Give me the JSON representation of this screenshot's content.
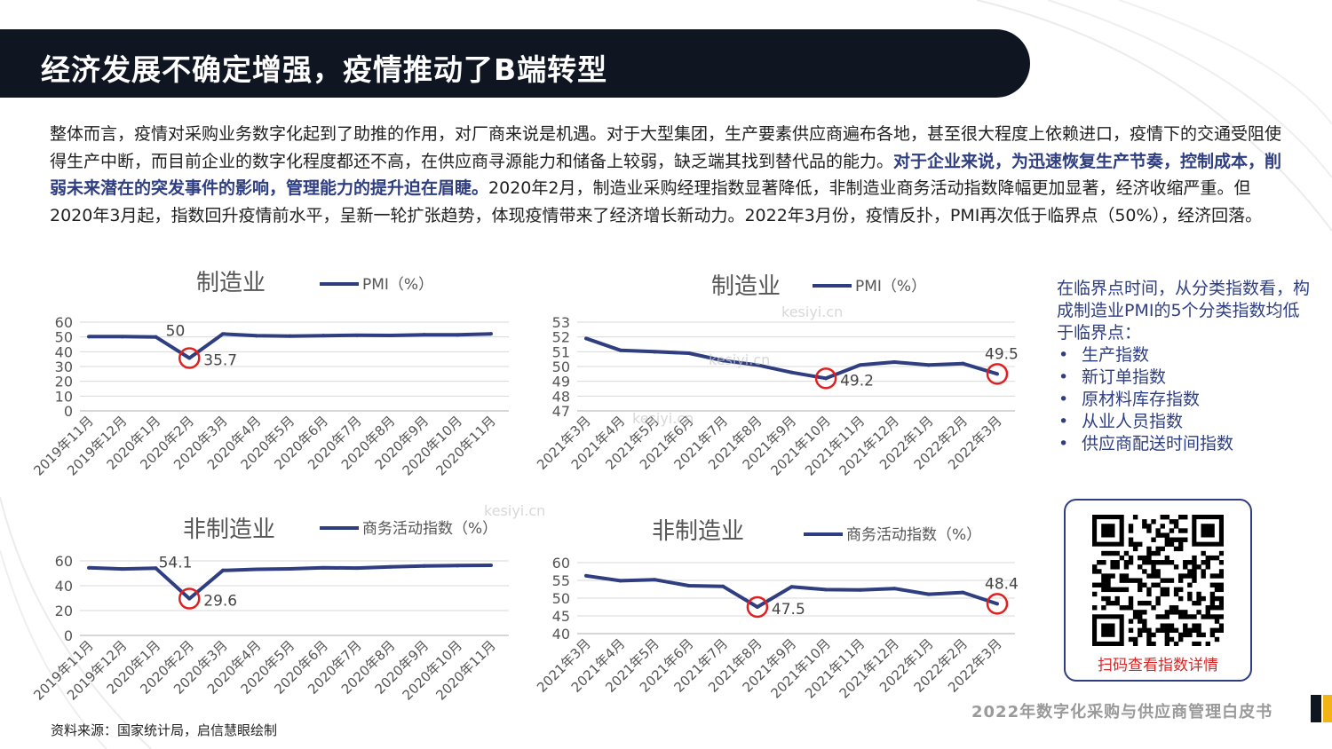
{
  "header": {
    "title": "经济发展不确定增强，疫情推动了B端转型"
  },
  "body": {
    "text_before": "整体而言，疫情对采购业务数字化起到了助推的作用，对厂商来说是机遇。对于大型集团，生产要素供应商遍布各地，甚至很大程度上依赖进口，疫情下的交通受阻使得生产中断，而目前企业的数字化程度都还不高，在供应商寻源能力和储备上较弱，缺乏端其找到替代品的能力。",
    "highlight": "对于企业来说，为迅速恢复生产节奏，控制成本，削弱未来潜在的突发事件的影响，管理能力的提升迫在眉睫。",
    "text_after": "2020年2月，制造业采购经理指数显著降低，非制造业商务活动指数降幅更加显著，经济收缩严重。但2020年3月起，指数回升疫情前水平，呈新一轮扩张趋势，体现疫情带来了经济增长新动力。2022年3月份，疫情反扑，PMI再次低于临界点（50%），经济回落。"
  },
  "chart_data": [
    {
      "type": "line",
      "title": "制造业",
      "legend": "PMI（%）",
      "categories": [
        "2019年11月",
        "2019年12月",
        "2020年1月",
        "2020年2月",
        "2020年3月",
        "2020年4月",
        "2020年5月",
        "2020年6月",
        "2020年7月",
        "2020年8月",
        "2020年9月",
        "2020年10月",
        "2020年11月"
      ],
      "values": [
        50.2,
        50.2,
        50.0,
        35.7,
        52.0,
        50.8,
        50.6,
        50.9,
        51.1,
        51.0,
        51.5,
        51.4,
        52.1
      ],
      "ylim": [
        0,
        60
      ],
      "yticks": [
        0,
        10,
        20,
        30,
        40,
        50,
        60
      ],
      "labels": [
        {
          "index": 2,
          "text": "50"
        },
        {
          "index": 3,
          "text": "35.7"
        }
      ],
      "circled": [
        3
      ],
      "color": "#2f3e80"
    },
    {
      "type": "line",
      "title": "制造业",
      "legend": "PMI（%）",
      "categories": [
        "2021年3月",
        "2021年4月",
        "2021年5月",
        "2021年6月",
        "2021年7月",
        "2021年8月",
        "2021年9月",
        "2021年10月",
        "2021年11月",
        "2021年12月",
        "2022年1月",
        "2022年2月",
        "2022年3月"
      ],
      "values": [
        51.9,
        51.1,
        51.0,
        50.9,
        50.4,
        50.1,
        49.6,
        49.2,
        50.1,
        50.3,
        50.1,
        50.2,
        49.5
      ],
      "ylim": [
        47,
        53
      ],
      "yticks": [
        47,
        48,
        49,
        50,
        51,
        52,
        53
      ],
      "labels": [
        {
          "index": 7,
          "text": "49.2"
        },
        {
          "index": 12,
          "text": "49.5"
        }
      ],
      "circled": [
        7,
        12
      ],
      "color": "#2f3e80"
    },
    {
      "type": "line",
      "title": "非制造业",
      "legend": "商务活动指数（%）",
      "categories": [
        "2019年11月",
        "2019年12月",
        "2020年1月",
        "2020年2月",
        "2020年3月",
        "2020年4月",
        "2020年5月",
        "2020年6月",
        "2020年7月",
        "2020年8月",
        "2020年9月",
        "2020年10月",
        "2020年11月"
      ],
      "values": [
        54.4,
        53.5,
        54.1,
        29.6,
        52.3,
        53.2,
        53.6,
        54.4,
        54.2,
        55.2,
        55.9,
        56.2,
        56.4
      ],
      "ylim": [
        0,
        60
      ],
      "yticks": [
        0,
        20,
        40,
        60
      ],
      "labels": [
        {
          "index": 2,
          "text": "54.1"
        },
        {
          "index": 3,
          "text": "29.6"
        }
      ],
      "circled": [
        3
      ],
      "color": "#2f3e80"
    },
    {
      "type": "line",
      "title": "非制造业",
      "legend": "商务活动指数（%）",
      "categories": [
        "2021年3月",
        "2021年4月",
        "2021年5月",
        "2021年6月",
        "2021年7月",
        "2021年8月",
        "2021年9月",
        "2021年10月",
        "2021年11月",
        "2021年12月",
        "2022年1月",
        "2022年2月",
        "2022年3月"
      ],
      "values": [
        56.3,
        54.9,
        55.2,
        53.5,
        53.3,
        47.5,
        53.2,
        52.4,
        52.3,
        52.7,
        51.1,
        51.6,
        48.4
      ],
      "ylim": [
        40,
        60
      ],
      "yticks": [
        40,
        45,
        50,
        55,
        60
      ],
      "labels": [
        {
          "index": 5,
          "text": "47.5"
        },
        {
          "index": 12,
          "text": "48.4"
        }
      ],
      "circled": [
        5,
        12
      ],
      "color": "#2f3e80"
    }
  ],
  "side_note": {
    "heading": "在临界点时间，从分类指数看，构成制造业PMI的5个分类指数均低于临界点：",
    "items": [
      "生产指数",
      "新订单指数",
      "原材料库存指数",
      "从业人员指数",
      "供应商配送时间指数"
    ]
  },
  "qr": {
    "icon": "qr-code-icon",
    "caption": "扫码查看指数详情"
  },
  "footer": {
    "title": "2022年数字化采购与供应商管理白皮书",
    "source": "资料来源：国家统计局，启信慧眼绘制"
  },
  "watermarks": [
    "kesiyi.cn",
    "kesiyi.cn",
    "kesiyi.cn",
    "kesiyi.cn"
  ]
}
